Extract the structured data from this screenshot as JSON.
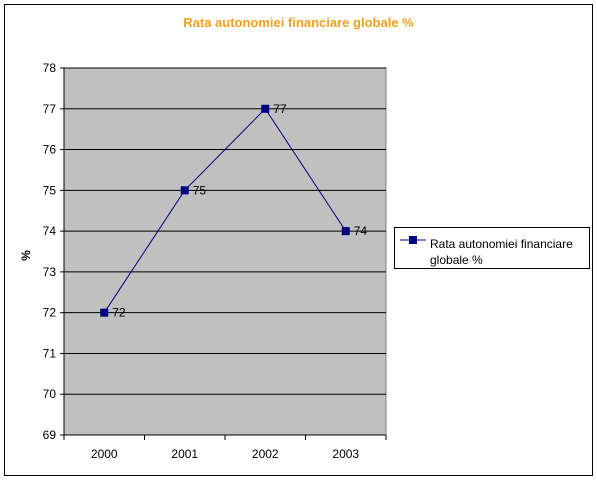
{
  "chart_data": {
    "type": "line",
    "title": "Rata autonomiei financiare globale %",
    "xlabel": "",
    "ylabel": "%",
    "categories": [
      "2000",
      "2001",
      "2002",
      "2003"
    ],
    "series": [
      {
        "name": "Rata autonomiei financiare globale %",
        "values": [
          72,
          75,
          77,
          74
        ]
      }
    ],
    "data_labels": [
      "72",
      "75",
      "77",
      "74"
    ],
    "ylim": [
      69,
      78
    ],
    "yticks": [
      "69",
      "70",
      "71",
      "72",
      "73",
      "74",
      "75",
      "76",
      "77",
      "78"
    ],
    "grid": true,
    "legend": "right",
    "colors": {
      "line": "#000080",
      "marker": "#000080",
      "plot_bg": "#c0c0c0",
      "title": "#f0a020"
    }
  }
}
